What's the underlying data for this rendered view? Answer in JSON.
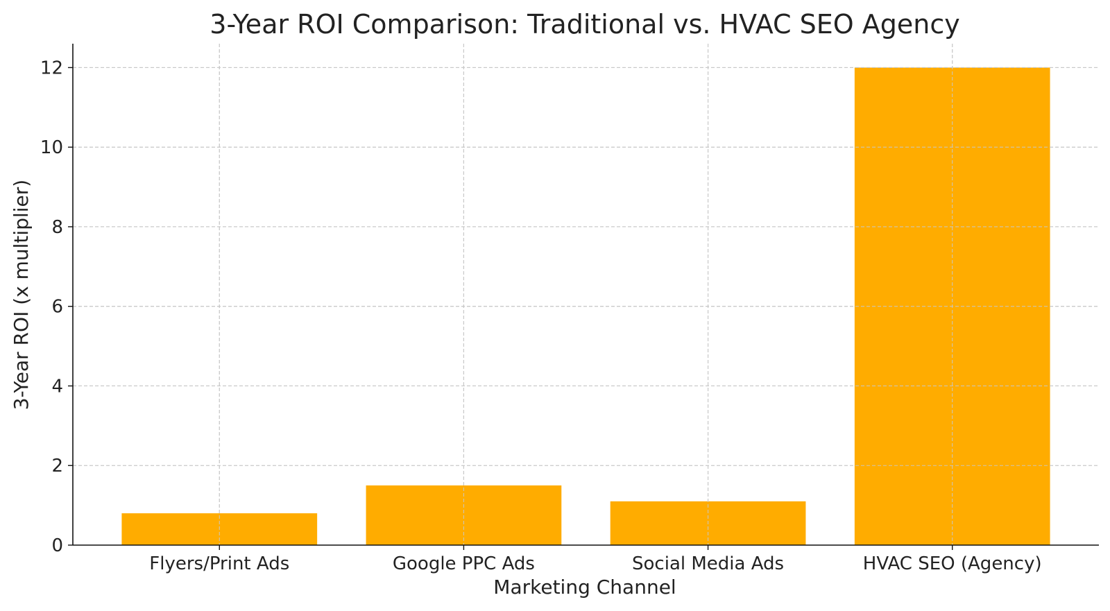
{
  "chart_data": {
    "type": "bar",
    "title": "3-Year ROI Comparison: Traditional vs. HVAC SEO Agency",
    "xlabel": "Marketing Channel",
    "ylabel": "3-Year ROI (x multiplier)",
    "categories": [
      "Flyers/Print Ads",
      "Google PPC Ads",
      "Social Media Ads",
      "HVAC SEO (Agency)"
    ],
    "values": [
      0.8,
      1.5,
      1.1,
      12
    ],
    "ylim": [
      0,
      12.6
    ],
    "yticks": [
      0,
      2,
      4,
      6,
      8,
      10,
      12
    ],
    "grid": true,
    "legend": "none",
    "bar_color": "#FFAC00",
    "grid_color": "#C8C8C8"
  }
}
